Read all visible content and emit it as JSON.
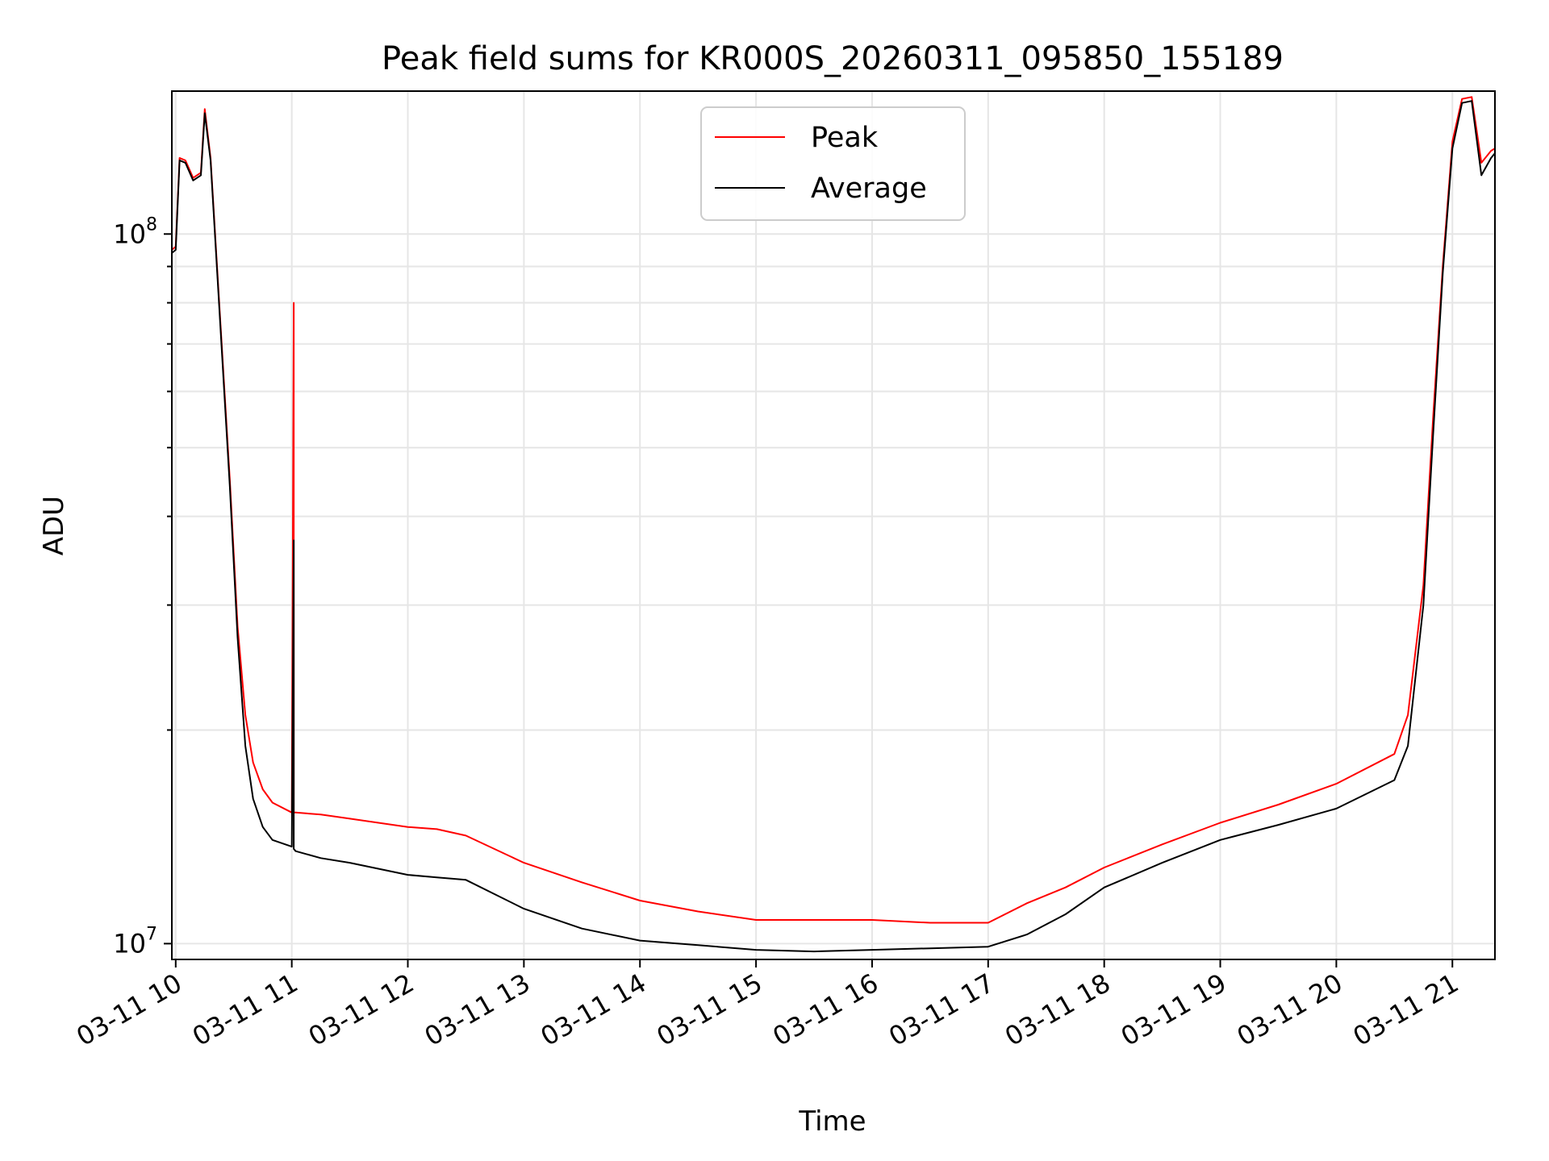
{
  "chart_data": {
    "type": "line",
    "title": "Peak field sums for KR000S_20260311_095850_155189",
    "xlabel": "Time",
    "ylabel": "ADU",
    "y_scale": "log",
    "ylim": [
      9500000,
      159000000
    ],
    "xlim": [
      "03-11 09:58",
      "03-11 21:22"
    ],
    "x_ticks": [
      "03-11 10",
      "03-11 11",
      "03-11 12",
      "03-11 13",
      "03-11 14",
      "03-11 15",
      "03-11 16",
      "03-11 17",
      "03-11 18",
      "03-11 19",
      "03-11 20",
      "03-11 21"
    ],
    "y_tick_labels": [
      {
        "base": "10",
        "exp": "7",
        "value": 10000000
      },
      {
        "base": "10",
        "exp": "8",
        "value": 100000000
      }
    ],
    "grid": true,
    "legend_position": "top-center",
    "series": [
      {
        "name": "Peak",
        "color": "#ff0000",
        "x": [
          "03-11 09:58",
          "03-11 10:00",
          "03-11 10:02",
          "03-11 10:05",
          "03-11 10:09",
          "03-11 10:13",
          "03-11 10:15",
          "03-11 10:18",
          "03-11 10:23",
          "03-11 10:28",
          "03-11 10:32",
          "10:36",
          "03-11 10:40",
          "03-11 10:45",
          "03-11 10:50",
          "03-11 11:00",
          "03-11 11:01",
          "03-11 11:01",
          "03-11 11:02",
          "03-11 11:15",
          "03-11 11:30",
          "03-11 12:00",
          "03-11 12:15",
          "03-11 12:30",
          "03-11 13:00",
          "03-11 13:30",
          "03-11 14:00",
          "03-11 14:30",
          "03-11 15:00",
          "03-11 15:30",
          "03-11 16:00",
          "03-11 16:30",
          "03-11 17:00",
          "03-11 17:20",
          "03-11 17:40",
          "03-11 18:00",
          "03-11 18:30",
          "03-11 19:00",
          "03-11 19:30",
          "03-11 20:00",
          "03-11 20:30",
          "03-11 20:37",
          "03-11 20:45",
          "03-11 20:50",
          "03-11 20:55",
          "03-11 21:00",
          "03-11 21:05",
          "03-11 21:10",
          "03-11 21:15",
          "03-11 21:20",
          "03-11 21:22"
        ],
        "y": [
          95000000,
          96000000,
          128000000,
          127000000,
          120000000,
          122000000,
          150000000,
          128000000,
          76000000,
          45000000,
          28000000,
          21000000,
          18000000,
          16500000,
          15800000,
          15300000,
          80000000,
          15300000,
          15300000,
          15200000,
          15000000,
          14600000,
          14500000,
          14200000,
          13000000,
          12200000,
          11500000,
          11100000,
          10800000,
          10800000,
          10800000,
          10700000,
          10700000,
          11400000,
          12000000,
          12800000,
          13800000,
          14800000,
          15700000,
          16800000,
          18500000,
          21000000,
          32000000,
          55000000,
          90000000,
          135000000,
          155000000,
          156000000,
          126000000,
          131000000,
          132000000
        ]
      },
      {
        "name": "Average",
        "color": "#000000",
        "x": [
          "03-11 09:58",
          "03-11 10:00",
          "03-11 10:02",
          "03-11 10:05",
          "03-11 10:09",
          "03-11 10:13",
          "03-11 10:15",
          "03-11 10:18",
          "03-11 10:23",
          "03-11 10:28",
          "03-11 10:32",
          "03-11 10:36",
          "03-11 10:40",
          "03-11 10:45",
          "03-11 10:50",
          "03-11 11:00",
          "03-11 11:01",
          "03-11 11:01",
          "03-11 11:02",
          "03-11 11:15",
          "03-11 11:30",
          "03-11 12:00",
          "03-11 12:15",
          "03-11 12:30",
          "03-11 13:00",
          "03-11 13:30",
          "03-11 14:00",
          "03-11 14:30",
          "03-11 15:00",
          "03-11 15:30",
          "03-11 16:00",
          "03-11 16:30",
          "03-11 17:00",
          "03-11 17:20",
          "03-11 17:40",
          "03-11 18:00",
          "03-11 18:30",
          "03-11 19:00",
          "03-11 19:30",
          "03-11 20:00",
          "03-11 20:30",
          "03-11 20:37",
          "03-11 20:45",
          "03-11 20:50",
          "03-11 20:55",
          "03-11 21:00",
          "03-11 21:05",
          "03-11 21:10",
          "03-11 21:15",
          "03-11 21:20",
          "03-11 21:22"
        ],
        "y": [
          94000000,
          95000000,
          127000000,
          126000000,
          119000000,
          121000000,
          148000000,
          127000000,
          75000000,
          44000000,
          27000000,
          19000000,
          16000000,
          14600000,
          14000000,
          13700000,
          37000000,
          13600000,
          13500000,
          13200000,
          13000000,
          12500000,
          12400000,
          12300000,
          11200000,
          10500000,
          10100000,
          9950000,
          9800000,
          9750000,
          9800000,
          9850000,
          9900000,
          10300000,
          11000000,
          12000000,
          13000000,
          14000000,
          14700000,
          15500000,
          17000000,
          19000000,
          30000000,
          52000000,
          88000000,
          132000000,
          153000000,
          154000000,
          121000000,
          128000000,
          130000000
        ]
      }
    ]
  }
}
